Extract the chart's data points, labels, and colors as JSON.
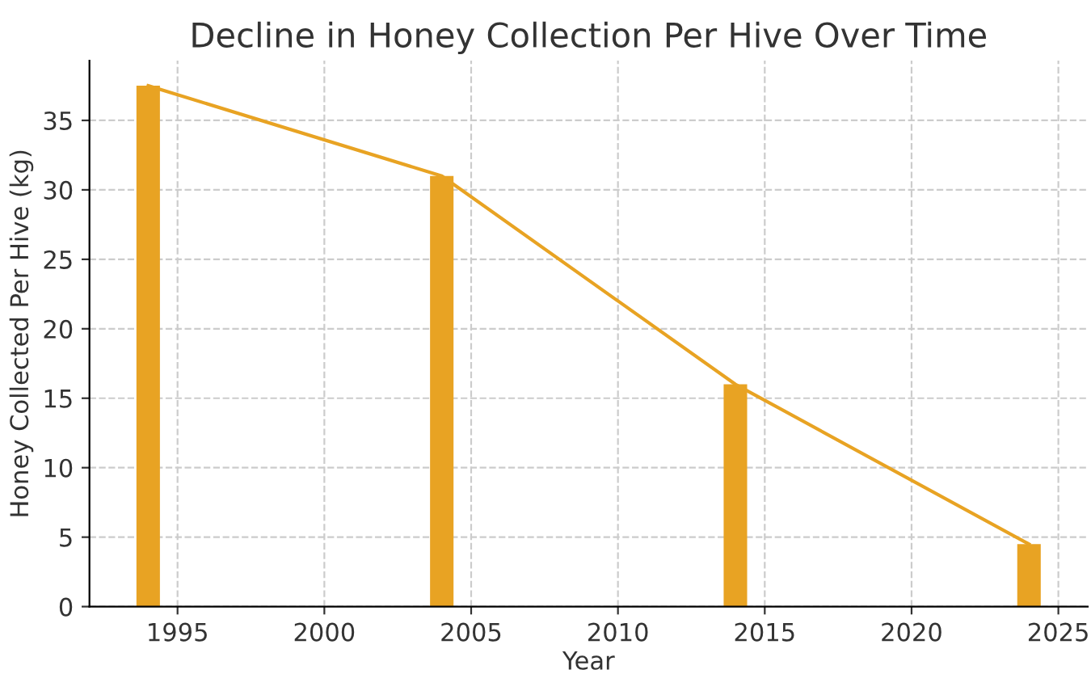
{
  "chart_data": {
    "type": "bar",
    "title": "Decline in Honey Collection Per Hive Over Time",
    "xlabel": "Year",
    "ylabel": "Honey Collected Per Hive (kg)",
    "x": [
      1994,
      2004,
      2014,
      2024
    ],
    "series": [
      {
        "color": "#e8a323",
        "values": [
          37.5,
          31,
          16,
          4.5
        ]
      },
      {
        "type": "line",
        "color": "#e8a323",
        "values": [
          37.5,
          31,
          16,
          4.5
        ]
      }
    ],
    "xlim": [
      1992,
      2026
    ],
    "xticks": [
      1995,
      2000,
      2005,
      2010,
      2015,
      2020,
      2025
    ],
    "ylim": [
      0,
      39.3
    ],
    "yticks": [
      0,
      5,
      10,
      15,
      20,
      25,
      30,
      35
    ],
    "grid": true,
    "legend": false
  }
}
